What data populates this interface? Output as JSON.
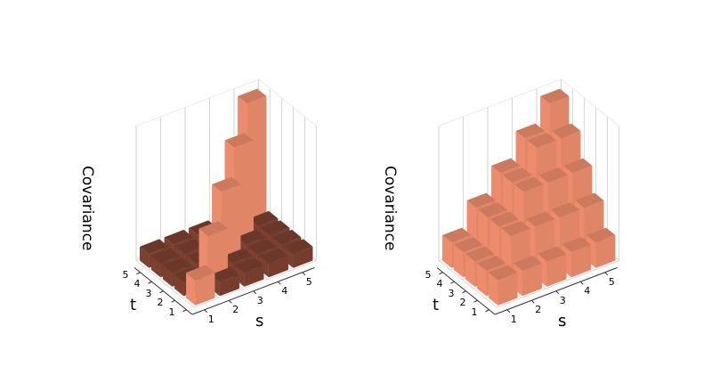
{
  "figure": {
    "panels": [
      {
        "id": "left",
        "zlabel": "Covariance",
        "xlabel": "s",
        "ylabel": "t",
        "xticks": [
          "1",
          "2",
          "3",
          "4",
          "5"
        ],
        "yticks": [
          "1",
          "2",
          "3",
          "4",
          "5"
        ]
      },
      {
        "id": "right",
        "zlabel": "Covariance",
        "xlabel": "s",
        "ylabel": "t",
        "xticks": [
          "1",
          "2",
          "3",
          "4",
          "5"
        ],
        "yticks": [
          "1",
          "2",
          "3",
          "4",
          "5"
        ]
      }
    ]
  },
  "colors": {
    "positive_bar": "#e8896a",
    "near_zero_bar": "#7a3f30",
    "grid": "#d9d9d9",
    "axis": "#333333"
  },
  "chart_data": [
    {
      "type": "bar3d",
      "title": "",
      "xlabel": "s",
      "ylabel": "t",
      "zlabel": "Covariance",
      "x": [
        1,
        2,
        3,
        4,
        5
      ],
      "y": [
        1,
        2,
        3,
        4,
        5
      ],
      "values": [
        [
          1.0,
          0.1,
          0.1,
          0.1,
          0.1
        ],
        [
          0.1,
          2.0,
          0.1,
          0.1,
          0.1
        ],
        [
          0.1,
          0.1,
          3.0,
          0.1,
          0.1
        ],
        [
          0.1,
          0.1,
          0.1,
          4.0,
          0.1
        ],
        [
          0.1,
          0.1,
          0.1,
          0.1,
          5.0
        ]
      ],
      "note": "values[t-1][s-1]; diagonal bars salmon, off-diagonal near-zero bars dark brown",
      "zlim": [
        0,
        5
      ]
    },
    {
      "type": "bar3d",
      "title": "",
      "xlabel": "s",
      "ylabel": "t",
      "zlabel": "Covariance",
      "x": [
        1,
        2,
        3,
        4,
        5
      ],
      "y": [
        1,
        2,
        3,
        4,
        5
      ],
      "values": [
        [
          1,
          1,
          1,
          1,
          1
        ],
        [
          1,
          2,
          2,
          2,
          2
        ],
        [
          1,
          2,
          3,
          3,
          3
        ],
        [
          1,
          2,
          3,
          4,
          4
        ],
        [
          1,
          2,
          3,
          4,
          5
        ]
      ],
      "note": "values[t-1][s-1] = min(s,t)",
      "zlim": [
        0,
        5
      ]
    }
  ]
}
